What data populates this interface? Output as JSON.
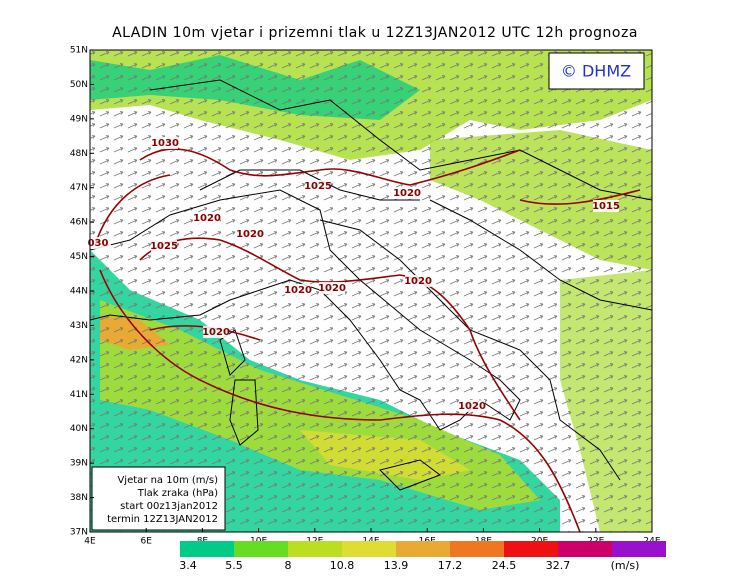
{
  "map": {
    "title": "ALADIN 10m vjetar i prizemni tlak u 12Z13JAN2012 UTC 12h prognoza",
    "copyright": "© DHMZ",
    "xlim": [
      4,
      24
    ],
    "ylim": [
      37,
      51
    ],
    "xticks": [
      {
        "value": 4,
        "label": "4E"
      },
      {
        "value": 6,
        "label": "6E"
      },
      {
        "value": 8,
        "label": "8E"
      },
      {
        "value": 10,
        "label": "10E"
      },
      {
        "value": 12,
        "label": "12E"
      },
      {
        "value": 14,
        "label": "14E"
      },
      {
        "value": 16,
        "label": "16E"
      },
      {
        "value": 18,
        "label": "18E"
      },
      {
        "value": 20,
        "label": "20E"
      },
      {
        "value": 22,
        "label": "22E"
      },
      {
        "value": 24,
        "label": "24E"
      }
    ],
    "yticks": [
      {
        "value": 37,
        "label": "37N"
      },
      {
        "value": 38,
        "label": "38N"
      },
      {
        "value": 39,
        "label": "39N"
      },
      {
        "value": 40,
        "label": "40N"
      },
      {
        "value": 41,
        "label": "41N"
      },
      {
        "value": 42,
        "label": "42N"
      },
      {
        "value": 43,
        "label": "43N"
      },
      {
        "value": 44,
        "label": "44N"
      },
      {
        "value": 45,
        "label": "45N"
      },
      {
        "value": 46,
        "label": "46N"
      },
      {
        "value": 47,
        "label": "47N"
      },
      {
        "value": 48,
        "label": "48N"
      },
      {
        "value": 49,
        "label": "49N"
      },
      {
        "value": 50,
        "label": "50N"
      },
      {
        "value": 51,
        "label": "51N"
      }
    ],
    "legend_lines": [
      "Vjetar na 10m (m/s)",
      "Tlak zraka (hPa)",
      "start 00z13jan2012",
      "termin 12Z13JAN2012"
    ],
    "isobar_labels": [
      "1030",
      "1025",
      "1020",
      "1015",
      "1020",
      "1020",
      "030",
      "1025",
      "1020",
      "1020",
      "1020",
      "1020",
      "1020"
    ]
  },
  "colorbar": {
    "levels": [
      3.4,
      5.5,
      8,
      10.8,
      13.9,
      17.2,
      24.5,
      32.7
    ],
    "colors": [
      "#00cc88",
      "#66dd22",
      "#bbdd22",
      "#dddd33",
      "#e8aa33",
      "#f07722",
      "#ee1111",
      "#cc0066"
    ],
    "top_color": "#9911cc",
    "unit": "(m/s)"
  }
}
